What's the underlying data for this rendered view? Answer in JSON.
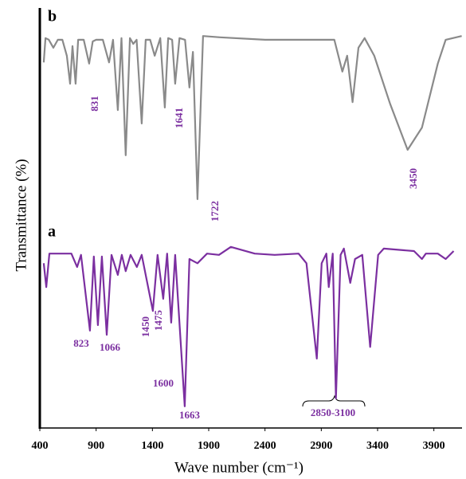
{
  "chart_data": {
    "type": "line",
    "x_label": "Wave number (cm⁻¹)",
    "y_label": "Transmittance (%)",
    "panel_labels": [
      "b",
      "a"
    ],
    "xlim": [
      400,
      4150
    ],
    "ylim": [
      0,
      100
    ],
    "xticks": [
      400,
      900,
      1400,
      1900,
      2400,
      2900,
      3400,
      3900
    ],
    "annotations": [
      "831",
      "1641",
      "1722",
      "3450",
      "823",
      "1066",
      "1450",
      "1475",
      "1600",
      "1663",
      "2850-3100"
    ],
    "series": [
      {
        "name": "b",
        "color": "#8a8a8a",
        "x": [
          435,
          450,
          480,
          520,
          560,
          600,
          640,
          669,
          690,
          718,
          740,
          790,
          838,
          870,
          900,
          960,
          1015,
          1050,
          1093,
          1125,
          1163,
          1200,
          1230,
          1260,
          1305,
          1340,
          1380,
          1420,
          1470,
          1510,
          1540,
          1575,
          1602,
          1640,
          1690,
          1729,
          1760,
          1800,
          1850,
          2000,
          2400,
          2800,
          3016,
          3087,
          3130,
          3178,
          3230,
          3285,
          3370,
          3511,
          3667,
          3794,
          3935,
          4005,
          4147
        ],
        "values": [
          87.0,
          92.8,
          92.4,
          90.5,
          92.4,
          92.4,
          88.6,
          81.9,
          90.9,
          81.9,
          92.4,
          92.4,
          86.7,
          92.0,
          92.4,
          92.4,
          87.0,
          92.4,
          75.6,
          92.8,
          64.8,
          92.8,
          91.4,
          92.4,
          72.4,
          92.4,
          92.4,
          88.6,
          92.8,
          76.2,
          92.8,
          92.4,
          81.9,
          92.8,
          92.4,
          81.0,
          89.5,
          54.3,
          93.3,
          93.0,
          92.4,
          92.4,
          92.4,
          84.8,
          88.6,
          77.5,
          90.5,
          92.8,
          88.6,
          77.1,
          66.1,
          71.4,
          86.7,
          92.4,
          93.3
        ]
      },
      {
        "name": "a",
        "color": "#7b2fa0",
        "x": [
          435,
          457,
          485,
          680,
          731,
          766,
          845,
          880,
          916,
          951,
          994,
          1037,
          1093,
          1128,
          1163,
          1206,
          1262,
          1305,
          1404,
          1446,
          1496,
          1531,
          1567,
          1602,
          1687,
          1729,
          1800,
          1885,
          1991,
          2097,
          2309,
          2486,
          2698,
          2768,
          2860,
          2903,
          2945,
          2966,
          3002,
          3030,
          3072,
          3101,
          3157,
          3200,
          3264,
          3334,
          3405,
          3455,
          3723,
          3794,
          3829,
          3935,
          4005,
          4076
        ],
        "values": [
          39.0,
          33.3,
          41.3,
          41.3,
          38.1,
          41.0,
          22.9,
          40.6,
          24.2,
          40.6,
          21.9,
          41.0,
          36.2,
          41.0,
          37.1,
          41.0,
          38.1,
          41.0,
          27.6,
          41.0,
          30.5,
          41.3,
          24.8,
          41.0,
          4.8,
          40.0,
          39.0,
          41.3,
          41.0,
          42.9,
          41.3,
          41.0,
          41.3,
          39.0,
          16.2,
          39.0,
          41.3,
          33.3,
          41.3,
          6.7,
          41.0,
          42.5,
          34.3,
          40.0,
          41.0,
          19.0,
          41.0,
          42.5,
          41.9,
          40.0,
          41.3,
          41.3,
          40.0,
          41.9
        ]
      }
    ]
  }
}
